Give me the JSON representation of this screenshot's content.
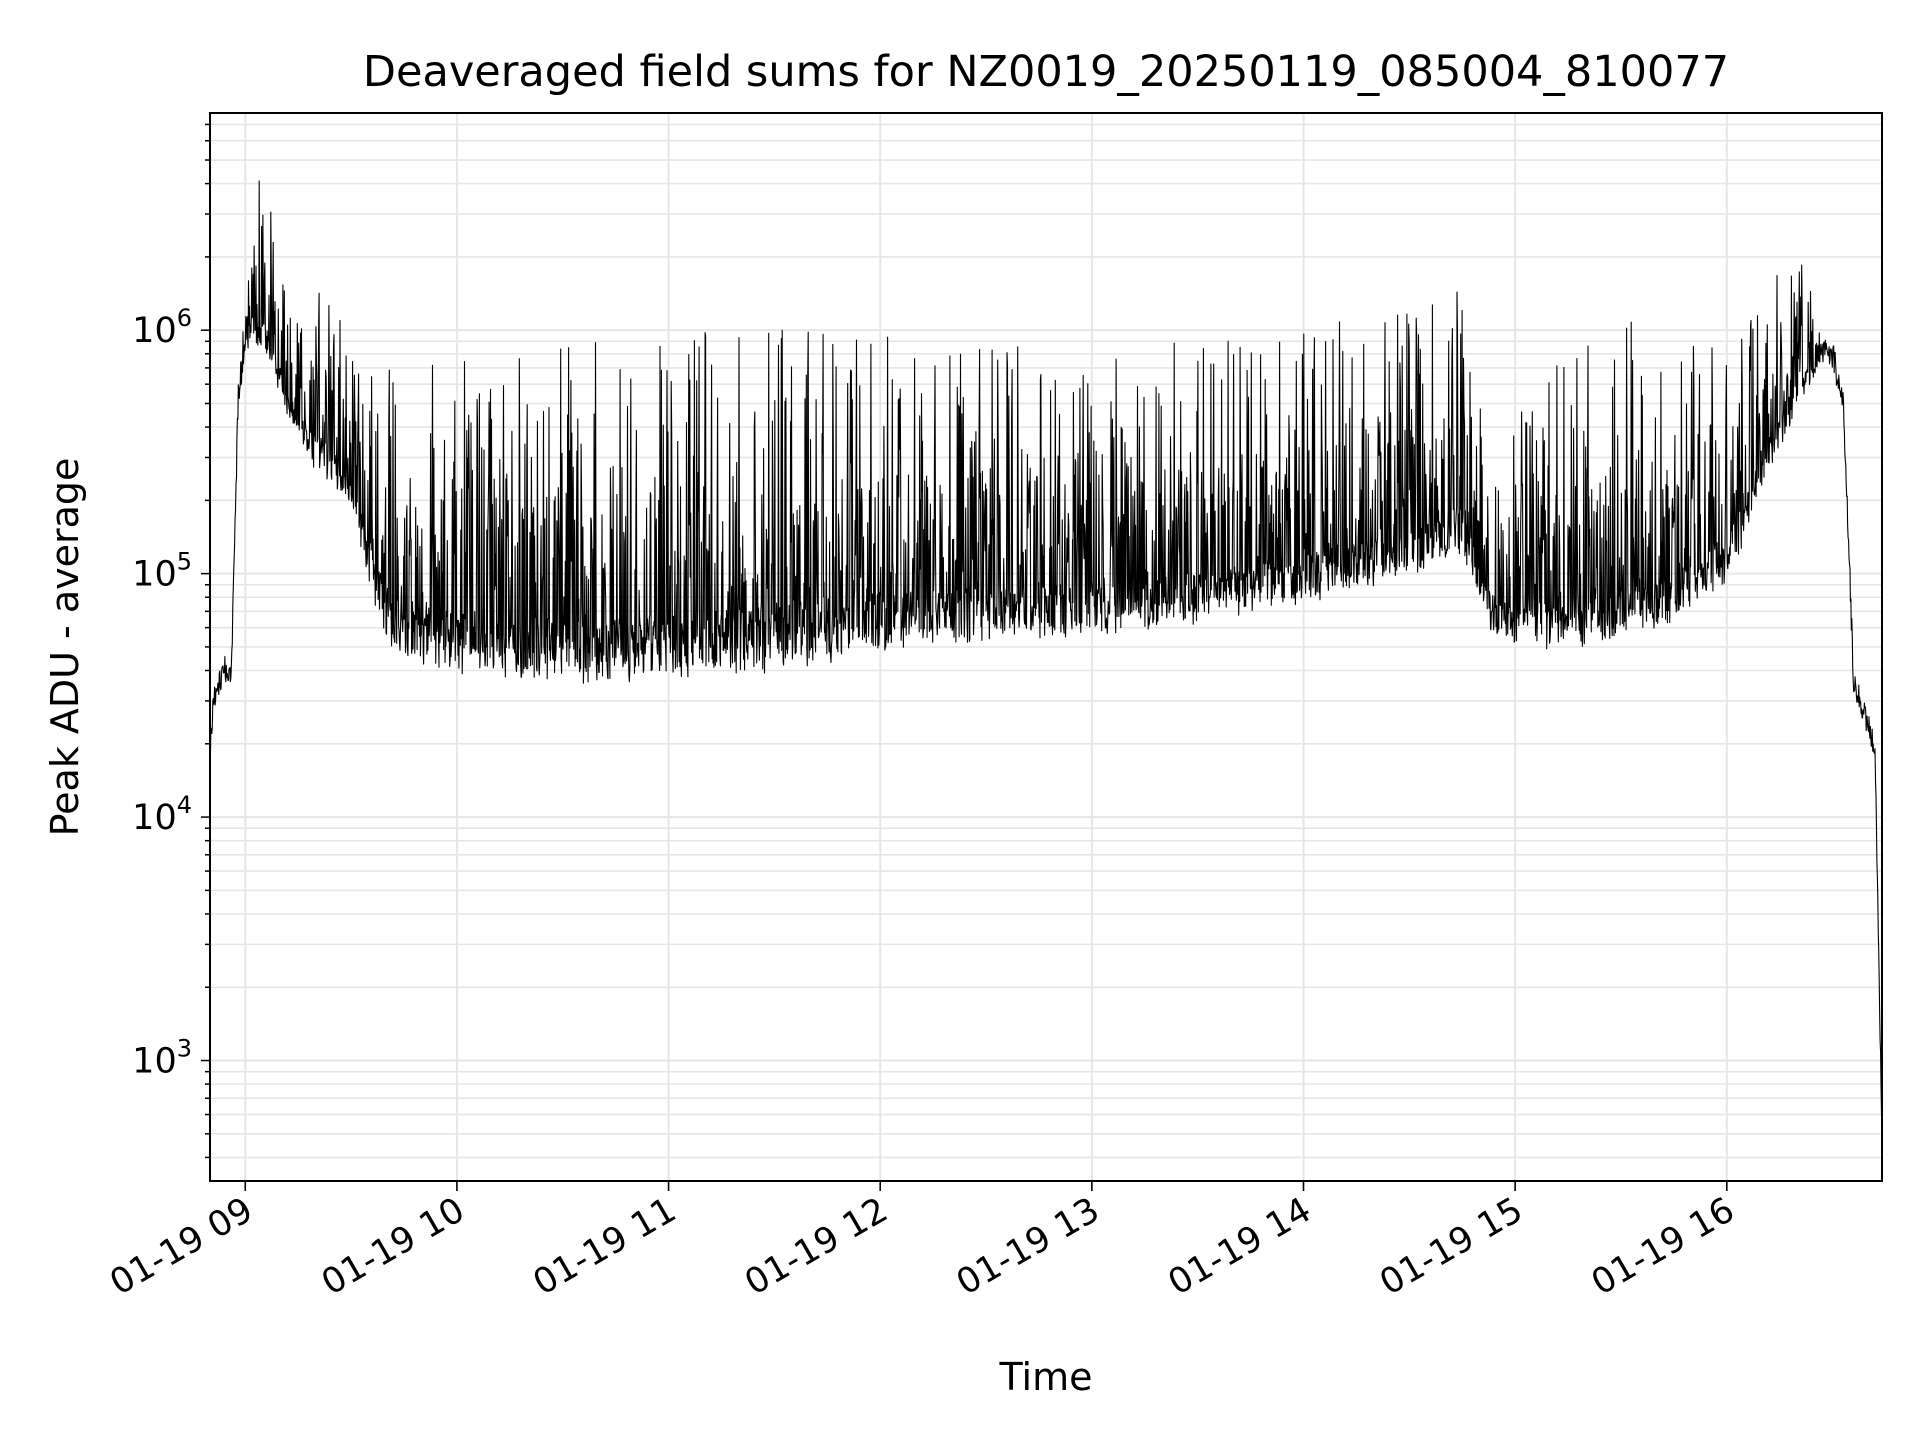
{
  "chart_data": {
    "type": "line",
    "title": "Deaveraged field sums for NZ0019_20250119_085004_810077",
    "xlabel": "Time",
    "ylabel": "Peak ADU - average",
    "y_scale": "log",
    "ylim": [
      320,
      7800000
    ],
    "xlim": [
      "2025-01-19 08:50",
      "2025-01-19 16:44"
    ],
    "grid": true,
    "legend": "none",
    "line_color": "#000000",
    "x_ticks": [
      {
        "value": "2025-01-19 09:00",
        "label": "01-19 09"
      },
      {
        "value": "2025-01-19 10:00",
        "label": "01-19 10"
      },
      {
        "value": "2025-01-19 11:00",
        "label": "01-19 11"
      },
      {
        "value": "2025-01-19 12:00",
        "label": "01-19 12"
      },
      {
        "value": "2025-01-19 13:00",
        "label": "01-19 13"
      },
      {
        "value": "2025-01-19 14:00",
        "label": "01-19 14"
      },
      {
        "value": "2025-01-19 15:00",
        "label": "01-19 15"
      },
      {
        "value": "2025-01-19 16:00",
        "label": "01-19 16"
      }
    ],
    "y_ticks": [
      {
        "value": 1000,
        "base": "10",
        "exp": "3"
      },
      {
        "value": 10000,
        "base": "10",
        "exp": "4"
      },
      {
        "value": 100000,
        "base": "10",
        "exp": "5"
      },
      {
        "value": 1000000,
        "base": "10",
        "exp": "6"
      }
    ],
    "series": [
      {
        "x": [
          "2025-01-19 08:50",
          "2025-01-19 08:51",
          "2025-01-19 08:52",
          "2025-01-19 08:54",
          "2025-01-19 08:56",
          "2025-01-19 08:57",
          "2025-01-19 08:58",
          "2025-01-19 09:00",
          "2025-01-19 09:02",
          "2025-01-19 09:04",
          "2025-01-19 09:07",
          "2025-01-19 09:10",
          "2025-01-19 09:12",
          "2025-01-19 09:15",
          "2025-01-19 09:20",
          "2025-01-19 09:25",
          "2025-01-19 09:30",
          "2025-01-19 09:35",
          "2025-01-19 09:40",
          "2025-01-19 09:45",
          "2025-01-19 09:55",
          "2025-01-19 10:10",
          "2025-01-19 10:30",
          "2025-01-19 10:50",
          "2025-01-19 11:10",
          "2025-01-19 11:30",
          "2025-01-19 11:50",
          "2025-01-19 12:10",
          "2025-01-19 12:30",
          "2025-01-19 12:50",
          "2025-01-19 13:10",
          "2025-01-19 13:30",
          "2025-01-19 13:50",
          "2025-01-19 14:10",
          "2025-01-19 14:30",
          "2025-01-19 14:45",
          "2025-01-19 14:53",
          "2025-01-19 15:00",
          "2025-01-19 15:15",
          "2025-01-19 15:30",
          "2025-01-19 15:45",
          "2025-01-19 16:00",
          "2025-01-19 16:10",
          "2025-01-19 16:20",
          "2025-01-19 16:27",
          "2025-01-19 16:30",
          "2025-01-19 16:33",
          "2025-01-19 16:36",
          "2025-01-19 16:39",
          "2025-01-19 16:42",
          "2025-01-19 16:44"
        ],
        "base_y": [
          18000,
          30000,
          35000,
          40000,
          38000,
          150000,
          500000,
          900000,
          1000000,
          900000,
          800000,
          600000,
          500000,
          400000,
          300000,
          250000,
          200000,
          100000,
          60000,
          50000,
          45000,
          42000,
          40000,
          40000,
          42000,
          45000,
          50000,
          55000,
          60000,
          60000,
          65000,
          70000,
          80000,
          90000,
          110000,
          130000,
          65000,
          55000,
          55000,
          60000,
          70000,
          100000,
          250000,
          500000,
          850000,
          800000,
          500000,
          35000,
          27000,
          20000,
          500
        ],
        "peak_y": [
          20000,
          36000,
          40000,
          46000,
          44000,
          180000,
          700000,
          1400000,
          3000000,
          4500000,
          3500000,
          2000000,
          1200000,
          1100000,
          1500000,
          1300000,
          1000000,
          800000,
          700000,
          700000,
          800000,
          850000,
          900000,
          950000,
          1000000,
          1000000,
          1000000,
          900000,
          900000,
          900000,
          900000,
          950000,
          1000000,
          1100000,
          1200000,
          1600000,
          300000,
          500000,
          800000,
          1100000,
          1000000,
          900000,
          1400000,
          2400000,
          950000,
          900000,
          600000,
          40000,
          30000,
          22000,
          600
        ]
      }
    ]
  }
}
